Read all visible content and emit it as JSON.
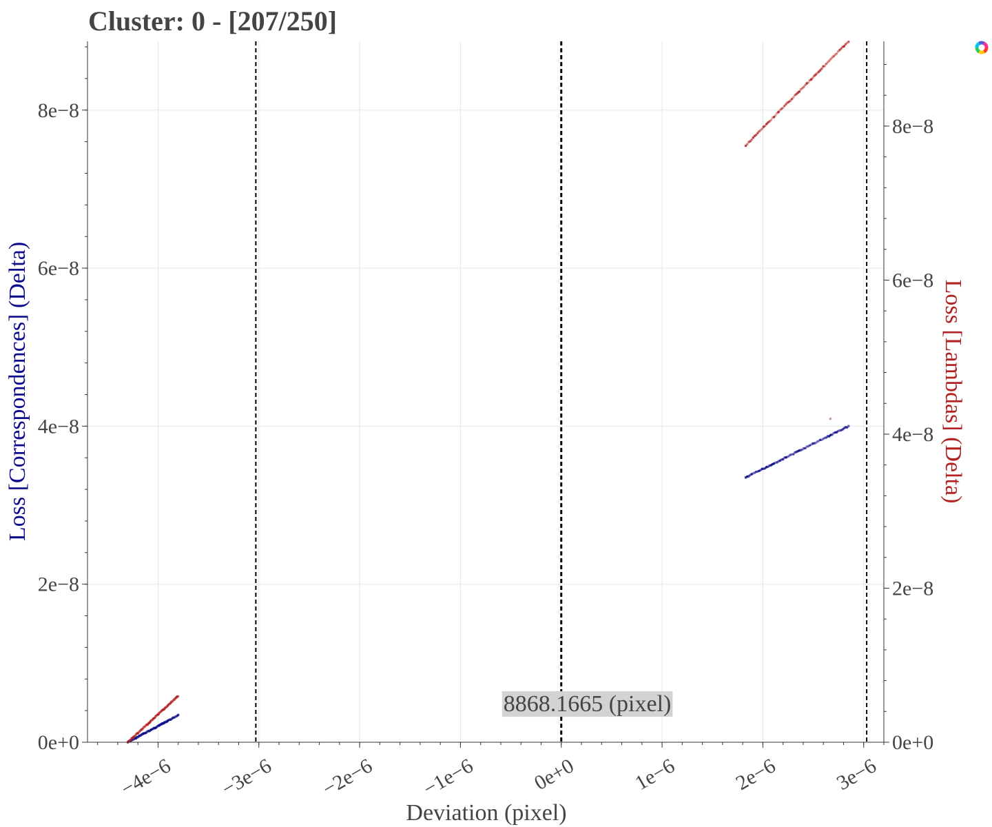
{
  "chart_data": {
    "type": "scatter",
    "title": "Cluster: 0 - [207/250]",
    "xlabel": "Deviation (pixel)",
    "ylabel_left": "Loss [Correspondences] (Delta)",
    "ylabel_right": "Loss [Lambdas] (Delta)",
    "x_ticks": [
      "−4e−6",
      "−3e−6",
      "−2e−6",
      "−1e−6",
      "0e+0",
      "1e−6",
      "2e−6",
      "3e−6"
    ],
    "x_tick_values": [
      -4e-06,
      -3e-06,
      -2e-06,
      -1e-06,
      0,
      1e-06,
      2e-06,
      3e-06
    ],
    "y_left_ticks": [
      "0e+0",
      "2e−8",
      "4e−8",
      "6e−8",
      "8e−8"
    ],
    "y_left_tick_values": [
      0,
      2e-08,
      4e-08,
      6e-08,
      8e-08
    ],
    "y_right_ticks": [
      "0e+0",
      "2e−8",
      "4e−8",
      "6e−8",
      "8e−8"
    ],
    "y_right_tick_values": [
      0,
      2e-08,
      4e-08,
      6e-08,
      8e-08
    ],
    "xlim": [
      -4.7e-06,
      3.2e-06
    ],
    "ylim_left": [
      0,
      8.87e-08
    ],
    "ylim_right": [
      0,
      9.1e-08
    ],
    "grid": true,
    "colors": {
      "left_series": "#0b0b8c",
      "right_series": "#b22222",
      "text": "#444444",
      "annot_bg": "#d3d3d3"
    },
    "vlines": [
      -3.03e-06,
      0.0,
      3.03e-06
    ],
    "annotation": {
      "text": "8868.1665 (pixel)",
      "x": 0.0,
      "y_left": 4.6e-09
    },
    "series": [
      {
        "axis": "left",
        "segments": [
          {
            "x_start": -4.3e-06,
            "x_end": -3.8e-06,
            "y_start": 0.0,
            "y_end": 3.4e-09
          },
          {
            "x_start": 1.83e-06,
            "x_end": 2.85e-06,
            "y_start": 3.35e-08,
            "y_end": 4e-08
          }
        ]
      },
      {
        "axis": "right",
        "segments": [
          {
            "x_start": -4.3e-06,
            "x_end": -3.8e-06,
            "y_start": 0.0,
            "y_end": 6e-09
          },
          {
            "x_start": 1.83e-06,
            "x_end": 2.85e-06,
            "y_start": 7.75e-08,
            "y_end": 9.1e-08
          }
        ],
        "outliers": [
          {
            "x": 2.67e-06,
            "y": 4.2e-08
          }
        ]
      }
    ]
  },
  "colorwheel_icon": "color-wheel-icon"
}
